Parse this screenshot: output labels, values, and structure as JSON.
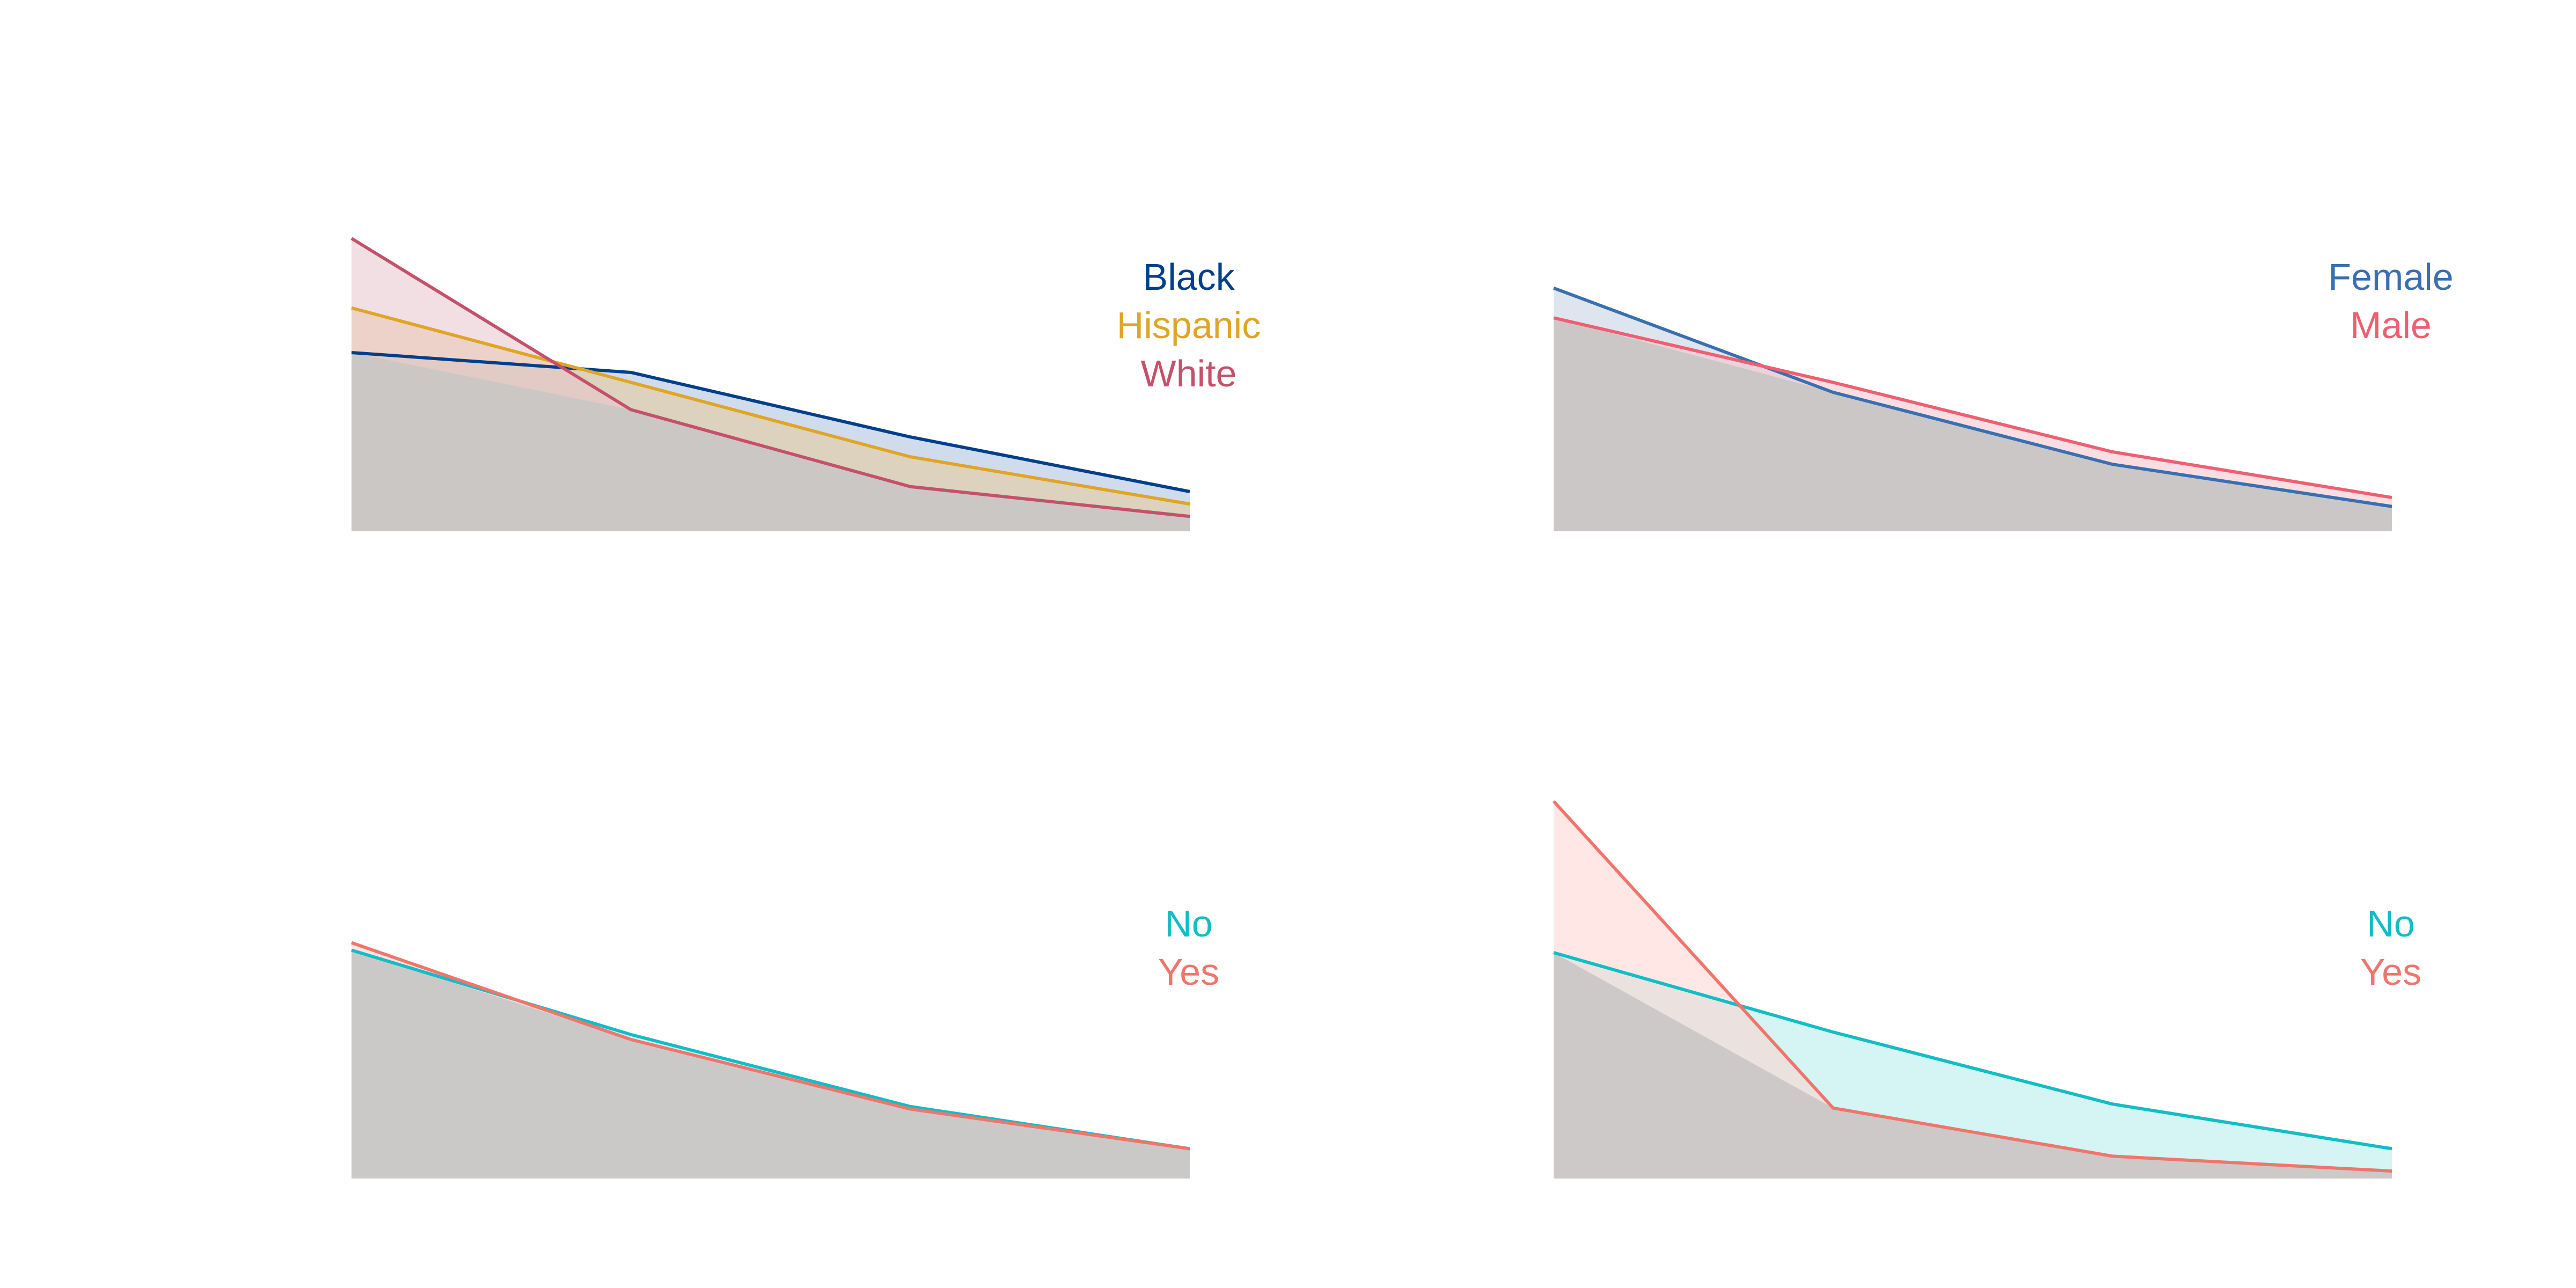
{
  "chart_data": [
    {
      "type": "area",
      "x": [
        1,
        2,
        3,
        4
      ],
      "ylim": [
        0,
        0.8
      ],
      "series": [
        {
          "name": "Black",
          "values": [
            0.36,
            0.32,
            0.19,
            0.08
          ],
          "color": "#003f8a",
          "fill": "#a9c0dd"
        },
        {
          "name": "Hispanic",
          "values": [
            0.45,
            0.3,
            0.15,
            0.055
          ],
          "color": "#e0a526",
          "fill": "#e5cb97"
        },
        {
          "name": "White",
          "values": [
            0.59,
            0.245,
            0.09,
            0.03
          ],
          "color": "#c4516a",
          "fill": "#e7c5cc"
        }
      ]
    },
    {
      "type": "area",
      "x": [
        1,
        2,
        3,
        4
      ],
      "ylim": [
        0,
        0.8
      ],
      "series": [
        {
          "name": "Female",
          "values": [
            0.49,
            0.28,
            0.135,
            0.05
          ],
          "color": "#3a6fb0",
          "fill": "#c2cfe0"
        },
        {
          "name": "Male",
          "values": [
            0.43,
            0.3,
            0.16,
            0.068
          ],
          "color": "#ee5f71",
          "fill": "#f3c2ca"
        }
      ]
    },
    {
      "type": "area",
      "x": [
        1,
        2,
        3,
        4
      ],
      "ylim": [
        0,
        0.8
      ],
      "series": [
        {
          "name": "No",
          "values": [
            0.46,
            0.29,
            0.145,
            0.06
          ],
          "color": "#12bdc5",
          "fill": "#b2ebeb"
        },
        {
          "name": "Yes",
          "values": [
            0.475,
            0.28,
            0.14,
            0.06
          ],
          "color": "#f0756b",
          "fill": "#f8d2cf"
        }
      ]
    },
    {
      "type": "area",
      "x": [
        1,
        2,
        3,
        4
      ],
      "ylim": [
        0,
        0.8
      ],
      "series": [
        {
          "name": "No",
          "values": [
            0.455,
            0.295,
            0.15,
            0.06
          ],
          "color": "#12bdc5",
          "fill": "#b2ebeb"
        },
        {
          "name": "Yes",
          "values": [
            0.76,
            0.142,
            0.045,
            0.015
          ],
          "color": "#f0756b",
          "fill": "#fdd3d0"
        }
      ]
    }
  ],
  "overlap_fill": "#c8c7c6"
}
